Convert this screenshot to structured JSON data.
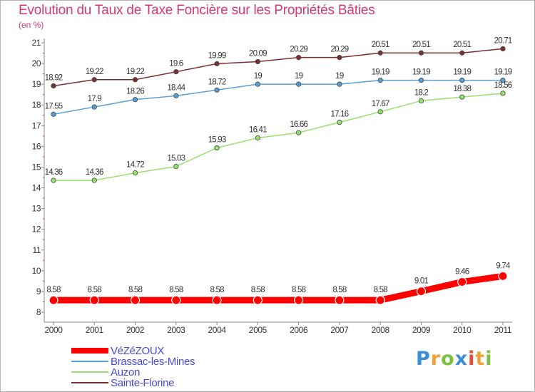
{
  "chart_data": {
    "type": "line",
    "title": "Evolution du Taux de Taxe Foncière sur les Propriétés Bâties",
    "ylabel": "(en %)",
    "xlabel": "",
    "ylim": [
      8,
      21
    ],
    "yticks": [
      "8",
      "9",
      "10",
      "11",
      "12",
      "13",
      "14",
      "15",
      "16",
      "17",
      "18",
      "19",
      "20",
      "21"
    ],
    "categories": [
      "2000",
      "2001",
      "2002",
      "2003",
      "2004",
      "2005",
      "2006",
      "2007",
      "2008",
      "2009",
      "2010",
      "2011"
    ],
    "series": [
      {
        "name": "VéZéZOUX",
        "color": "#ff0000",
        "values": [
          8.58,
          8.58,
          8.58,
          8.58,
          8.58,
          8.58,
          8.58,
          8.58,
          8.58,
          9.01,
          9.46,
          9.74
        ],
        "labels": [
          "8.58",
          "8.58",
          "8.58",
          "8.58",
          "8.58",
          "8.58",
          "8.58",
          "8.58",
          "8.58",
          "9.01",
          "9.46",
          "9.74"
        ]
      },
      {
        "name": "Brassac-les-Mines",
        "color": "#5a9fd4",
        "values": [
          17.55,
          17.9,
          18.26,
          18.44,
          18.72,
          19,
          19,
          19,
          19.19,
          19.19,
          19.19,
          19.19
        ],
        "labels": [
          "17.55",
          "17.9",
          "18.26",
          "18.44",
          "18.72",
          "19",
          "19",
          "19",
          "19.19",
          "19.19",
          "19.19",
          "19.19"
        ]
      },
      {
        "name": "Auzon",
        "color": "#96e06e",
        "values": [
          14.36,
          14.36,
          14.72,
          15.03,
          15.93,
          16.41,
          16.66,
          17.16,
          17.67,
          18.2,
          18.38,
          18.56
        ],
        "labels": [
          "14.36",
          "14.36",
          "14.72",
          "15.03",
          "15.93",
          "16.41",
          "16.66",
          "17.16",
          "17.67",
          "18.2",
          "18.38",
          "18.56"
        ]
      },
      {
        "name": "Sainte-Florine",
        "color": "#7b2f2f",
        "values": [
          18.92,
          19.22,
          19.22,
          19.6,
          19.99,
          20.09,
          20.29,
          20.29,
          20.51,
          20.51,
          20.51,
          20.71
        ],
        "labels": [
          "18.92",
          "19.22",
          "19.22",
          "19.6",
          "19.99",
          "20.09",
          "20.29",
          "20.29",
          "20.51",
          "20.51",
          "20.51",
          "20.71"
        ]
      }
    ],
    "grid": false,
    "legend_position": "bottom-left"
  },
  "logo": {
    "text": "Proxiti",
    "letters": [
      "P",
      "r",
      "o",
      "x",
      "i",
      "t",
      "i"
    ],
    "colors": [
      "#3a8fd6",
      "#f2a23a",
      "#7ac143",
      "#3a8fd6",
      "#e84c3d",
      "#f2a23a",
      "#7ac143"
    ]
  }
}
